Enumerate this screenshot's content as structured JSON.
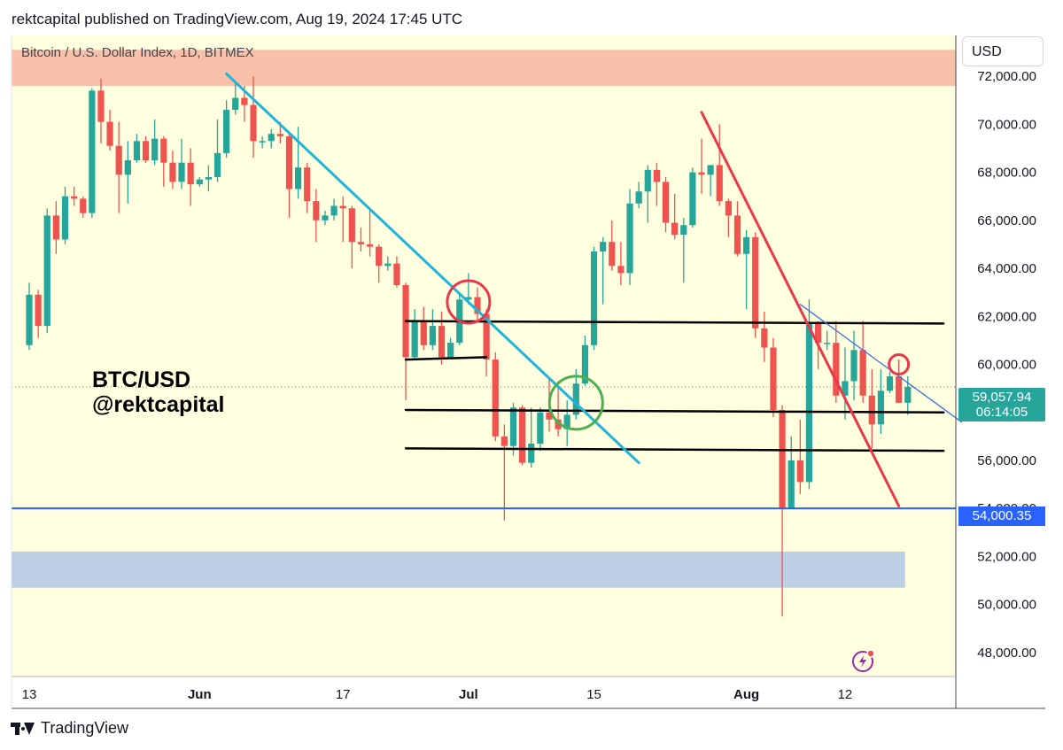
{
  "header": {
    "text": "rektcapital published on TradingView.com, Aug 19, 2024 17:45 UTC"
  },
  "symbol": {
    "label": "Bitcoin / U.S. Dollar Index, 1D, BITMEX"
  },
  "currency": {
    "label": "USD"
  },
  "annotation": {
    "line1": "BTC/USD",
    "line2": "@rektcapital"
  },
  "footer": {
    "brand": "TradingView"
  },
  "price_labels": {
    "current": "59,057.94",
    "countdown": "06:14:05",
    "support": "54,000.35"
  },
  "colors": {
    "up": "#26a69a",
    "down": "#ef5350",
    "background": "#ffffe0",
    "resistance_zone": "#f8c0a8",
    "demand_zone": "#bccfe4",
    "support_line": "#2962ff",
    "cyan_trend": "#1fb5d8",
    "red_trend": "#e8384a",
    "blue_trend": "#3f6fe0"
  },
  "chart_data": {
    "type": "candlestick",
    "xlabel": "",
    "ylabel": "",
    "ylim": [
      47000,
      73700
    ],
    "y_ticks": [
      {
        "value": 48000,
        "label": "48,000.00"
      },
      {
        "value": 50000,
        "label": "50,000.00"
      },
      {
        "value": 52000,
        "label": "52,000.00"
      },
      {
        "value": 54000,
        "label": "54,000.00"
      },
      {
        "value": 56000,
        "label": "56,000.00"
      },
      {
        "value": 58000,
        "label": "58,000.00"
      },
      {
        "value": 60000,
        "label": "60,000.00"
      },
      {
        "value": 62000,
        "label": "62,000.00"
      },
      {
        "value": 64000,
        "label": "64,000.00"
      },
      {
        "value": 66000,
        "label": "66,000.00"
      },
      {
        "value": 68000,
        "label": "68,000.00"
      },
      {
        "value": 70000,
        "label": "70,000.00"
      },
      {
        "value": 72000,
        "label": "72,000.00"
      }
    ],
    "x_ticks": [
      {
        "date": "2024-05-13",
        "label": "13",
        "bold": false
      },
      {
        "date": "2024-06-01",
        "label": "Jun",
        "bold": true
      },
      {
        "date": "2024-06-17",
        "label": "17",
        "bold": false
      },
      {
        "date": "2024-07-01",
        "label": "Jul",
        "bold": true
      },
      {
        "date": "2024-07-15",
        "label": "15",
        "bold": false
      },
      {
        "date": "2024-08-01",
        "label": "Aug",
        "bold": true
      },
      {
        "date": "2024-08-12",
        "label": "12",
        "bold": false
      }
    ],
    "candles": [
      {
        "date": "2024-05-13",
        "o": 60800,
        "h": 63400,
        "l": 60600,
        "c": 62900
      },
      {
        "date": "2024-05-14",
        "o": 62900,
        "h": 63100,
        "l": 61100,
        "c": 61600
      },
      {
        "date": "2024-05-15",
        "o": 61600,
        "h": 66500,
        "l": 61300,
        "c": 66200
      },
      {
        "date": "2024-05-16",
        "o": 66200,
        "h": 66800,
        "l": 64600,
        "c": 65200
      },
      {
        "date": "2024-05-17",
        "o": 65200,
        "h": 67400,
        "l": 65000,
        "c": 67000
      },
      {
        "date": "2024-05-18",
        "o": 67000,
        "h": 67400,
        "l": 66600,
        "c": 66900
      },
      {
        "date": "2024-05-19",
        "o": 66900,
        "h": 67000,
        "l": 66100,
        "c": 66300
      },
      {
        "date": "2024-05-20",
        "o": 66300,
        "h": 71500,
        "l": 66100,
        "c": 71400
      },
      {
        "date": "2024-05-21",
        "o": 71400,
        "h": 71900,
        "l": 69200,
        "c": 70100
      },
      {
        "date": "2024-05-22",
        "o": 70100,
        "h": 70600,
        "l": 68900,
        "c": 69100
      },
      {
        "date": "2024-05-23",
        "o": 69100,
        "h": 70100,
        "l": 66300,
        "c": 67900
      },
      {
        "date": "2024-05-24",
        "o": 67900,
        "h": 69300,
        "l": 66700,
        "c": 68500
      },
      {
        "date": "2024-05-25",
        "o": 68500,
        "h": 69600,
        "l": 68400,
        "c": 69300
      },
      {
        "date": "2024-05-26",
        "o": 69300,
        "h": 69500,
        "l": 68400,
        "c": 68500
      },
      {
        "date": "2024-05-27",
        "o": 68500,
        "h": 70200,
        "l": 68300,
        "c": 69400
      },
      {
        "date": "2024-05-28",
        "o": 69400,
        "h": 69500,
        "l": 67400,
        "c": 68400
      },
      {
        "date": "2024-05-29",
        "o": 68400,
        "h": 68900,
        "l": 67300,
        "c": 67600
      },
      {
        "date": "2024-05-30",
        "o": 67600,
        "h": 69400,
        "l": 67300,
        "c": 68400
      },
      {
        "date": "2024-05-31",
        "o": 68400,
        "h": 69000,
        "l": 66600,
        "c": 67500
      },
      {
        "date": "2024-06-01",
        "o": 67500,
        "h": 67800,
        "l": 67400,
        "c": 67700
      },
      {
        "date": "2024-06-02",
        "o": 67700,
        "h": 68300,
        "l": 67200,
        "c": 67800
      },
      {
        "date": "2024-06-03",
        "o": 67800,
        "h": 70200,
        "l": 67600,
        "c": 68800
      },
      {
        "date": "2024-06-04",
        "o": 68800,
        "h": 71000,
        "l": 68600,
        "c": 70600
      },
      {
        "date": "2024-06-05",
        "o": 70600,
        "h": 71700,
        "l": 70400,
        "c": 71100
      },
      {
        "date": "2024-06-06",
        "o": 71100,
        "h": 71600,
        "l": 70100,
        "c": 70800
      },
      {
        "date": "2024-06-07",
        "o": 70800,
        "h": 72000,
        "l": 68600,
        "c": 69300
      },
      {
        "date": "2024-06-08",
        "o": 69300,
        "h": 69500,
        "l": 69000,
        "c": 69300
      },
      {
        "date": "2024-06-09",
        "o": 69300,
        "h": 69800,
        "l": 69000,
        "c": 69600
      },
      {
        "date": "2024-06-10",
        "o": 69600,
        "h": 70100,
        "l": 69200,
        "c": 69500
      },
      {
        "date": "2024-06-11",
        "o": 69500,
        "h": 69600,
        "l": 66100,
        "c": 67300
      },
      {
        "date": "2024-06-12",
        "o": 67300,
        "h": 69900,
        "l": 66900,
        "c": 68200
      },
      {
        "date": "2024-06-13",
        "o": 68200,
        "h": 68400,
        "l": 66300,
        "c": 66800
      },
      {
        "date": "2024-06-14",
        "o": 66800,
        "h": 67300,
        "l": 65100,
        "c": 66000
      },
      {
        "date": "2024-06-15",
        "o": 66000,
        "h": 66400,
        "l": 65800,
        "c": 66200
      },
      {
        "date": "2024-06-16",
        "o": 66200,
        "h": 66900,
        "l": 66000,
        "c": 66600
      },
      {
        "date": "2024-06-17",
        "o": 66600,
        "h": 67000,
        "l": 65100,
        "c": 66500
      },
      {
        "date": "2024-06-18",
        "o": 66500,
        "h": 66600,
        "l": 64000,
        "c": 65100
      },
      {
        "date": "2024-06-19",
        "o": 65100,
        "h": 65700,
        "l": 64700,
        "c": 65000
      },
      {
        "date": "2024-06-20",
        "o": 65000,
        "h": 66500,
        "l": 64500,
        "c": 64900
      },
      {
        "date": "2024-06-21",
        "o": 64900,
        "h": 65000,
        "l": 63400,
        "c": 64100
      },
      {
        "date": "2024-06-22",
        "o": 64100,
        "h": 64500,
        "l": 63900,
        "c": 64200
      },
      {
        "date": "2024-06-23",
        "o": 64200,
        "h": 64500,
        "l": 63200,
        "c": 63300
      },
      {
        "date": "2024-06-24",
        "o": 63300,
        "h": 63400,
        "l": 58500,
        "c": 60300
      },
      {
        "date": "2024-06-25",
        "o": 60300,
        "h": 62300,
        "l": 60200,
        "c": 61800
      },
      {
        "date": "2024-06-26",
        "o": 61800,
        "h": 62400,
        "l": 60600,
        "c": 60800
      },
      {
        "date": "2024-06-27",
        "o": 60800,
        "h": 62300,
        "l": 60600,
        "c": 61600
      },
      {
        "date": "2024-06-28",
        "o": 61600,
        "h": 62200,
        "l": 60000,
        "c": 60300
      },
      {
        "date": "2024-06-29",
        "o": 60300,
        "h": 61100,
        "l": 60300,
        "c": 60900
      },
      {
        "date": "2024-06-30",
        "o": 60900,
        "h": 63000,
        "l": 60800,
        "c": 62700
      },
      {
        "date": "2024-07-01",
        "o": 62700,
        "h": 63800,
        "l": 62500,
        "c": 62800
      },
      {
        "date": "2024-07-02",
        "o": 62800,
        "h": 63200,
        "l": 61800,
        "c": 62100
      },
      {
        "date": "2024-07-03",
        "o": 62100,
        "h": 62300,
        "l": 59500,
        "c": 60200
      },
      {
        "date": "2024-07-04",
        "o": 60200,
        "h": 60500,
        "l": 56800,
        "c": 57000
      },
      {
        "date": "2024-07-05",
        "o": 57000,
        "h": 57500,
        "l": 53500,
        "c": 56600
      },
      {
        "date": "2024-07-06",
        "o": 56600,
        "h": 58400,
        "l": 56200,
        "c": 58200
      },
      {
        "date": "2024-07-07",
        "o": 58200,
        "h": 58300,
        "l": 55800,
        "c": 55900
      },
      {
        "date": "2024-07-08",
        "o": 55900,
        "h": 58200,
        "l": 55700,
        "c": 56700
      },
      {
        "date": "2024-07-09",
        "o": 56700,
        "h": 58200,
        "l": 56400,
        "c": 58000
      },
      {
        "date": "2024-07-10",
        "o": 58000,
        "h": 59400,
        "l": 57200,
        "c": 57700
      },
      {
        "date": "2024-07-11",
        "o": 57700,
        "h": 59300,
        "l": 57000,
        "c": 57300
      },
      {
        "date": "2024-07-12",
        "o": 57300,
        "h": 58500,
        "l": 56600,
        "c": 57900
      },
      {
        "date": "2024-07-13",
        "o": 57900,
        "h": 59800,
        "l": 57700,
        "c": 59200
      },
      {
        "date": "2024-07-14",
        "o": 59200,
        "h": 61200,
        "l": 59100,
        "c": 60800
      },
      {
        "date": "2024-07-15",
        "o": 60800,
        "h": 64900,
        "l": 60600,
        "c": 64700
      },
      {
        "date": "2024-07-16",
        "o": 64700,
        "h": 65300,
        "l": 62500,
        "c": 65100
      },
      {
        "date": "2024-07-17",
        "o": 65100,
        "h": 66000,
        "l": 63900,
        "c": 64100
      },
      {
        "date": "2024-07-18",
        "o": 64100,
        "h": 65100,
        "l": 63300,
        "c": 63800
      },
      {
        "date": "2024-07-19",
        "o": 63800,
        "h": 67300,
        "l": 63300,
        "c": 66700
      },
      {
        "date": "2024-07-20",
        "o": 66700,
        "h": 67600,
        "l": 66500,
        "c": 67200
      },
      {
        "date": "2024-07-21",
        "o": 67200,
        "h": 68300,
        "l": 65900,
        "c": 68100
      },
      {
        "date": "2024-07-22",
        "o": 68100,
        "h": 68400,
        "l": 66600,
        "c": 67600
      },
      {
        "date": "2024-07-23",
        "o": 67600,
        "h": 67800,
        "l": 65500,
        "c": 65900
      },
      {
        "date": "2024-07-24",
        "o": 65900,
        "h": 67100,
        "l": 65200,
        "c": 65400
      },
      {
        "date": "2024-07-25",
        "o": 65400,
        "h": 66100,
        "l": 63400,
        "c": 65800
      },
      {
        "date": "2024-07-26",
        "o": 65800,
        "h": 68200,
        "l": 65700,
        "c": 68000
      },
      {
        "date": "2024-07-27",
        "o": 68000,
        "h": 69400,
        "l": 67100,
        "c": 67900
      },
      {
        "date": "2024-07-28",
        "o": 67900,
        "h": 68300,
        "l": 67000,
        "c": 68300
      },
      {
        "date": "2024-07-29",
        "o": 68300,
        "h": 70000,
        "l": 66600,
        "c": 66800
      },
      {
        "date": "2024-07-30",
        "o": 66800,
        "h": 66900,
        "l": 65300,
        "c": 66200
      },
      {
        "date": "2024-07-31",
        "o": 66200,
        "h": 66800,
        "l": 64500,
        "c": 64600
      },
      {
        "date": "2024-08-01",
        "o": 64600,
        "h": 65600,
        "l": 62300,
        "c": 65300
      },
      {
        "date": "2024-08-02",
        "o": 65300,
        "h": 65500,
        "l": 61100,
        "c": 61500
      },
      {
        "date": "2024-08-03",
        "o": 61500,
        "h": 62200,
        "l": 60100,
        "c": 60700
      },
      {
        "date": "2024-08-04",
        "o": 60700,
        "h": 61100,
        "l": 57800,
        "c": 58100
      },
      {
        "date": "2024-08-05",
        "o": 58100,
        "h": 58300,
        "l": 49500,
        "c": 54000
      },
      {
        "date": "2024-08-06",
        "o": 54000,
        "h": 57000,
        "l": 54000,
        "c": 56000
      },
      {
        "date": "2024-08-07",
        "o": 56000,
        "h": 57700,
        "l": 54600,
        "c": 55100
      },
      {
        "date": "2024-08-08",
        "o": 55100,
        "h": 62700,
        "l": 54800,
        "c": 61700
      },
      {
        "date": "2024-08-09",
        "o": 61700,
        "h": 61800,
        "l": 59800,
        "c": 60900
      },
      {
        "date": "2024-08-10",
        "o": 60900,
        "h": 61400,
        "l": 60600,
        "c": 60900
      },
      {
        "date": "2024-08-11",
        "o": 60900,
        "h": 61800,
        "l": 58400,
        "c": 58700
      },
      {
        "date": "2024-08-12",
        "o": 58700,
        "h": 60700,
        "l": 57700,
        "c": 59300
      },
      {
        "date": "2024-08-13",
        "o": 59300,
        "h": 61400,
        "l": 58500,
        "c": 60600
      },
      {
        "date": "2024-08-14",
        "o": 60600,
        "h": 61800,
        "l": 58400,
        "c": 58700
      },
      {
        "date": "2024-08-15",
        "o": 58700,
        "h": 59800,
        "l": 56500,
        "c": 57500
      },
      {
        "date": "2024-08-16",
        "o": 57500,
        "h": 59800,
        "l": 57100,
        "c": 58900
      },
      {
        "date": "2024-08-17",
        "o": 58900,
        "h": 59700,
        "l": 58800,
        "c": 59500
      },
      {
        "date": "2024-08-18",
        "o": 59500,
        "h": 60200,
        "l": 58400,
        "c": 58400
      },
      {
        "date": "2024-08-19",
        "o": 58400,
        "h": 59500,
        "l": 57900,
        "c": 59058
      }
    ],
    "zones": [
      {
        "name": "resistance-zone",
        "y1": 71600,
        "y2": 73100,
        "x1": "2024-05-13",
        "x2": "edge"
      },
      {
        "name": "demand-zone",
        "y1": 50700,
        "y2": 52200,
        "x1": "2024-05-13",
        "x2": "2024-08-19"
      }
    ],
    "lines": [
      {
        "name": "support-54k-line",
        "type": "horizontal",
        "y": 54000
      },
      {
        "name": "range-high-line",
        "type": "segment",
        "p1": [
          "2024-06-24",
          61800
        ],
        "p2": [
          "2024-08-23",
          61700
        ]
      },
      {
        "name": "range-mid-line",
        "type": "segment",
        "p1": [
          "2024-06-24",
          58100
        ],
        "p2": [
          "2024-08-23",
          58000
        ]
      },
      {
        "name": "range-low-line",
        "type": "segment",
        "p1": [
          "2024-06-24",
          56500
        ],
        "p2": [
          "2024-08-23",
          56400
        ]
      },
      {
        "name": "local-range-line",
        "type": "segment",
        "p1": [
          "2024-06-24",
          60200
        ],
        "p2": [
          "2024-07-03",
          60300
        ]
      },
      {
        "name": "cyan-downtrend-line",
        "type": "segment",
        "p1": [
          "2024-06-04",
          72100
        ],
        "p2": [
          "2024-07-20",
          55900
        ]
      },
      {
        "name": "red-downtrend-line",
        "type": "segment",
        "p1": [
          "2024-07-27",
          70500
        ],
        "p2": [
          "2024-08-18",
          54100
        ]
      },
      {
        "name": "blue-downtrend-line",
        "type": "segment",
        "p1": [
          "2024-08-07",
          62500
        ],
        "p2": [
          "2024-08-25",
          57600
        ]
      }
    ],
    "markers": [
      {
        "name": "rejection-circle-july",
        "date": "2024-07-01",
        "price": 62600,
        "color": "#e8384a"
      },
      {
        "name": "breakout-circle-july",
        "date": "2024-07-13",
        "price": 58400,
        "color": "#4caf50"
      },
      {
        "name": "rejection-circle-aug",
        "date": "2024-08-18",
        "price": 60000,
        "color": "#e8384a"
      }
    ],
    "current_price": 59057.94
  }
}
